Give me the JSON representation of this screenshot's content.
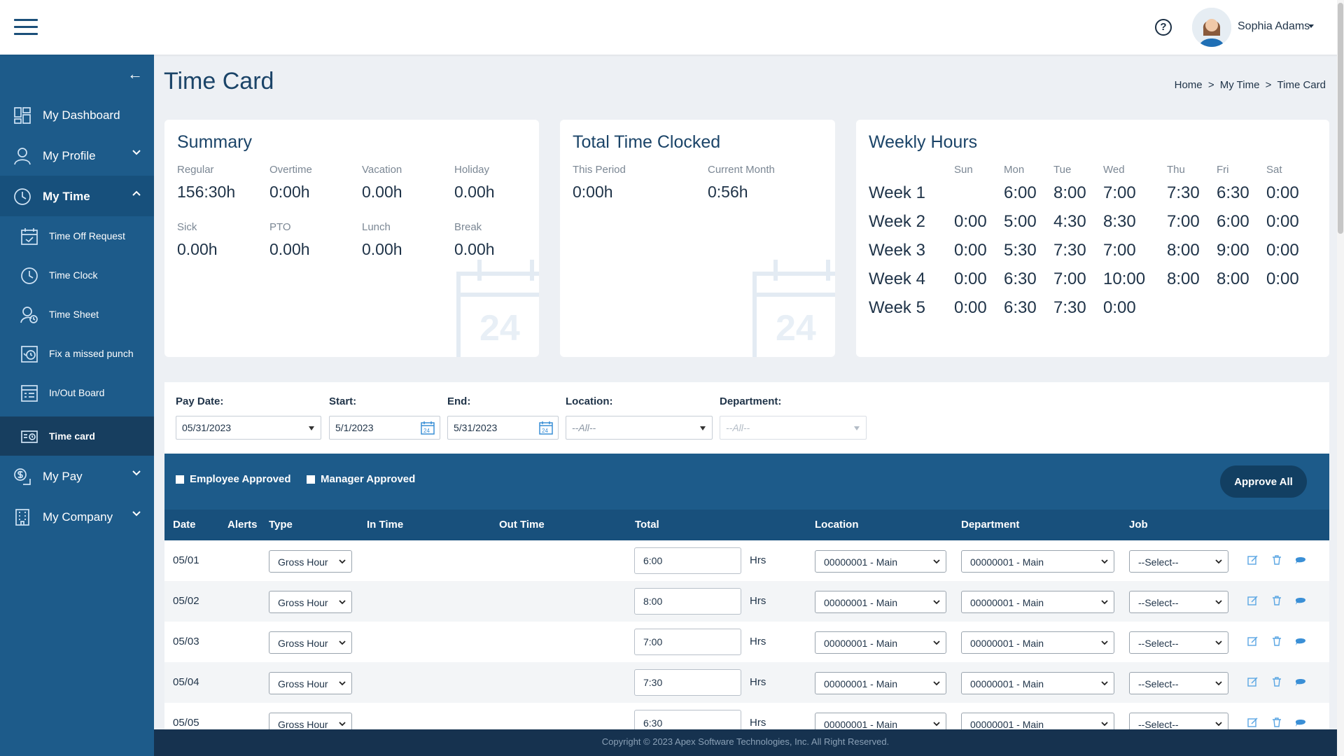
{
  "header": {
    "menu_icon": "hamburger-icon",
    "help_icon": "question-circle-icon",
    "help_glyph": "?",
    "user_name": "Sophia Adams"
  },
  "sidebar": {
    "collapse_icon": "arrow-left-icon",
    "collapse_glyph": "←",
    "items": [
      {
        "label": "My Dashboard",
        "icon": "dashboard-icon"
      },
      {
        "label": "My Profile",
        "icon": "user-icon",
        "expandable": true
      },
      {
        "label": "My Time",
        "icon": "clock-icon",
        "expandable": true,
        "expanded": true,
        "active": true
      },
      {
        "label": "My Pay",
        "icon": "dollar-icon",
        "expandable": true
      },
      {
        "label": "My Company",
        "icon": "building-icon",
        "expandable": true
      }
    ],
    "my_time_sub": [
      {
        "label": "Time Off Request",
        "icon": "calendar-check-icon"
      },
      {
        "label": "Time Clock",
        "icon": "clock-icon"
      },
      {
        "label": "Time Sheet",
        "icon": "user-clock-icon"
      },
      {
        "label": "Fix a missed punch",
        "icon": "punch-fix-icon"
      },
      {
        "label": "In/Out Board",
        "icon": "board-icon"
      },
      {
        "label": "Time card",
        "icon": "timecard-icon",
        "active": true
      }
    ]
  },
  "page": {
    "title": "Time Card",
    "breadcrumb": [
      "Home",
      ">",
      "My Time",
      ">",
      "Time Card"
    ]
  },
  "summary": {
    "title": "Summary",
    "stats": [
      {
        "label": "Regular",
        "value": "156:30h"
      },
      {
        "label": "Overtime",
        "value": "0:00h"
      },
      {
        "label": "Vacation",
        "value": "0.00h"
      },
      {
        "label": "Holiday",
        "value": "0.00h"
      },
      {
        "label": "Sick",
        "value": "0.00h"
      },
      {
        "label": "PTO",
        "value": "0.00h"
      },
      {
        "label": "Lunch",
        "value": "0.00h"
      },
      {
        "label": "Break",
        "value": "0.00h"
      }
    ],
    "watermark_text": "24"
  },
  "total_clocked": {
    "title": "Total Time Clocked",
    "stats": [
      {
        "label": "This Period",
        "value": "0:00h"
      },
      {
        "label": "Current Month",
        "value": "0:56h"
      }
    ],
    "watermark_text": "24"
  },
  "weekly": {
    "title": "Weekly Hours",
    "days": [
      "Sun",
      "Mon",
      "Tue",
      "Wed",
      "Thu",
      "Fri",
      "Sat"
    ],
    "weeks": [
      {
        "label": "Week 1",
        "values": [
          "",
          "6:00",
          "8:00",
          "7:00",
          "7:30",
          "6:30",
          "0:00"
        ]
      },
      {
        "label": "Week 2",
        "values": [
          "0:00",
          "5:00",
          "4:30",
          "8:30",
          "7:00",
          "6:00",
          "0:00"
        ]
      },
      {
        "label": "Week 3",
        "values": [
          "0:00",
          "5:30",
          "7:30",
          "7:00",
          "8:00",
          "9:00",
          "0:00"
        ]
      },
      {
        "label": "Week 4",
        "values": [
          "0:00",
          "6:30",
          "7:00",
          "10:00",
          "8:00",
          "8:00",
          "0:00"
        ]
      },
      {
        "label": "Week 5",
        "values": [
          "0:00",
          "6:30",
          "7:30",
          "0:00",
          "",
          "",
          ""
        ]
      }
    ]
  },
  "filters": {
    "pay_date": {
      "label": "Pay Date:",
      "value": "05/31/2023"
    },
    "start": {
      "label": "Start:",
      "value": "5/1/2023"
    },
    "end": {
      "label": "End:",
      "value": "5/31/2023"
    },
    "location": {
      "label": "Location:",
      "value": "--All--"
    },
    "department": {
      "label": "Department:",
      "value": "--All--"
    }
  },
  "approvals": {
    "employee_approved": "Employee Approved",
    "manager_approved": "Manager Approved",
    "approve_all": "Approve All"
  },
  "table": {
    "columns": [
      "Date",
      "Alerts",
      "Type",
      "In Time",
      "Out Time",
      "Total",
      "Location",
      "Department",
      "Job"
    ],
    "unit": "Hrs",
    "rows": [
      {
        "date": "05/01",
        "type": "Gross Hour",
        "total": "6:00",
        "location": "00000001 - Main",
        "department": "00000001 - Main",
        "job": "--Select--"
      },
      {
        "date": "05/02",
        "type": "Gross Hour",
        "total": "8:00",
        "location": "00000001 - Main",
        "department": "00000001 - Main",
        "job": "--Select--"
      },
      {
        "date": "05/03",
        "type": "Gross Hour",
        "total": "7:00",
        "location": "00000001 - Main",
        "department": "00000001 - Main",
        "job": "--Select--"
      },
      {
        "date": "05/04",
        "type": "Gross Hour",
        "total": "7:30",
        "location": "00000001 - Main",
        "department": "00000001 - Main",
        "job": "--Select--"
      },
      {
        "date": "05/05",
        "type": "Gross Hour",
        "total": "6:30",
        "location": "00000001 - Main",
        "department": "00000001 - Main",
        "job": "--Select--"
      }
    ],
    "row_actions": [
      "edit-icon",
      "trash-icon",
      "comment-icon"
    ]
  },
  "footer": {
    "copyright": "Copyright © 2023 Apex Software Technologies, Inc.",
    "rights": " All Right Reserved."
  },
  "colors": {
    "sidebar": "#1d5b8a",
    "sidebar_active": "#173e5f",
    "table_header": "#18507c",
    "footer": "#16324f",
    "accent_icon": "#3a8fd6"
  }
}
